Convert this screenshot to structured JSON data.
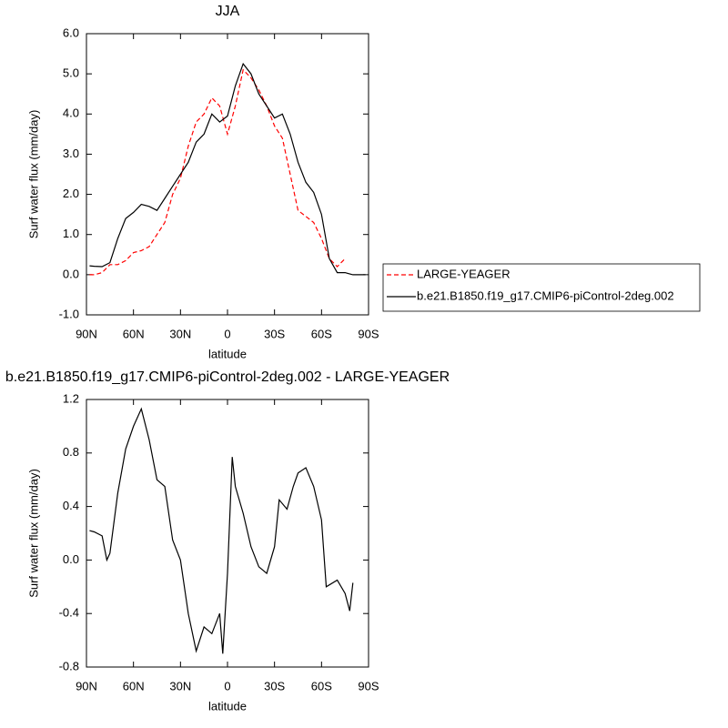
{
  "chart_data": [
    {
      "type": "line",
      "title": "JJA",
      "xlabel": "latitude",
      "ylabel": "Surf water flux (mm/day)",
      "x": [
        88,
        85,
        80,
        75,
        70,
        65,
        60,
        55,
        50,
        45,
        40,
        35,
        30,
        25,
        20,
        15,
        10,
        5,
        0,
        -5,
        -10,
        -15,
        -20,
        -25,
        -30,
        -35,
        -40,
        -45,
        -50,
        -55,
        -60,
        -65,
        -70,
        -75,
        -80,
        -85,
        -88
      ],
      "series": [
        {
          "name": "LARGE-YEAGER",
          "color": "#ff0000",
          "dashed": true,
          "values": [
            0.0,
            0.0,
            0.05,
            0.25,
            0.25,
            0.35,
            0.55,
            0.6,
            0.7,
            1.0,
            1.3,
            2.0,
            2.4,
            3.2,
            3.8,
            4.0,
            4.4,
            4.2,
            3.5,
            4.2,
            5.1,
            4.9,
            4.6,
            4.2,
            3.7,
            3.4,
            2.5,
            1.6,
            1.45,
            1.3,
            0.9,
            0.4,
            0.2,
            0.4,
            null,
            null,
            null
          ]
        },
        {
          "name": "b.e21.B1850.f19_g17.CMIP6-piControl-2deg.002",
          "color": "#000000",
          "dashed": false,
          "values": [
            0.22,
            0.21,
            0.2,
            0.3,
            0.9,
            1.4,
            1.55,
            1.75,
            1.7,
            1.6,
            1.9,
            2.2,
            2.5,
            2.8,
            3.3,
            3.5,
            4.0,
            3.8,
            3.95,
            4.7,
            5.25,
            5.0,
            4.5,
            4.2,
            3.9,
            4.0,
            3.5,
            2.8,
            2.3,
            2.05,
            1.5,
            0.4,
            0.05,
            0.05,
            0.0,
            0.0,
            0.0
          ]
        }
      ],
      "xlim": [
        90,
        -90
      ],
      "xticks": [
        {
          "value": 90,
          "label": "90N"
        },
        {
          "value": 60,
          "label": "60N"
        },
        {
          "value": 30,
          "label": "30N"
        },
        0,
        {
          "value": -30,
          "label": "30S"
        },
        {
          "value": -60,
          "label": "60S"
        },
        {
          "value": -90,
          "label": "90S"
        }
      ],
      "ylim": [
        -1,
        6
      ],
      "yticks": [
        {
          "value": -1,
          "label": "-1.0"
        },
        {
          "value": 0,
          "label": "0.0"
        },
        {
          "value": 1,
          "label": "1.0"
        },
        {
          "value": 2,
          "label": "2.0"
        },
        {
          "value": 3,
          "label": "3.0"
        },
        {
          "value": 4,
          "label": "4.0"
        },
        {
          "value": 5,
          "label": "5.0"
        },
        {
          "value": 6,
          "label": "6.0"
        }
      ],
      "legend": "right"
    },
    {
      "type": "line",
      "title": "b.e21.B1850.f19_g17.CMIP6-piControl-2deg.002 - LARGE-YEAGER",
      "xlabel": "latitude",
      "ylabel": "Surf water flux (mm/day)",
      "x": [
        88,
        85,
        80,
        77,
        75,
        70,
        65,
        60,
        55,
        50,
        45,
        40,
        35,
        30,
        25,
        20,
        15,
        10,
        5,
        3,
        0,
        -3,
        -5,
        -10,
        -15,
        -20,
        -25,
        -30,
        -33,
        -38,
        -42,
        -45,
        -50,
        -55,
        -60,
        -63,
        -70,
        -75,
        -78,
        -80
      ],
      "series": [
        {
          "color": "#000000",
          "dashed": false,
          "values": [
            0.22,
            0.21,
            0.18,
            0.0,
            0.05,
            0.5,
            0.83,
            1.0,
            1.13,
            0.9,
            0.6,
            0.55,
            0.15,
            0.0,
            -0.4,
            -0.68,
            -0.5,
            -0.55,
            -0.4,
            -0.7,
            -0.1,
            0.77,
            0.55,
            0.35,
            0.1,
            -0.05,
            -0.1,
            0.1,
            0.45,
            0.38,
            0.55,
            0.65,
            0.69,
            0.55,
            0.3,
            -0.2,
            -0.15,
            -0.25,
            -0.38,
            -0.17
          ]
        }
      ],
      "xlim": [
        90,
        -90
      ],
      "xticks": [
        {
          "value": 90,
          "label": "90N"
        },
        {
          "value": 60,
          "label": "60N"
        },
        {
          "value": 30,
          "label": "30N"
        },
        0,
        {
          "value": -30,
          "label": "30S"
        },
        {
          "value": -60,
          "label": "60S"
        },
        {
          "value": -90,
          "label": "90S"
        }
      ],
      "ylim": [
        -0.8,
        1.2
      ],
      "yticks": [
        -0.8,
        -0.4,
        {
          "value": 0,
          "label": "0.0"
        },
        0.4,
        0.8,
        1.2
      ]
    }
  ]
}
